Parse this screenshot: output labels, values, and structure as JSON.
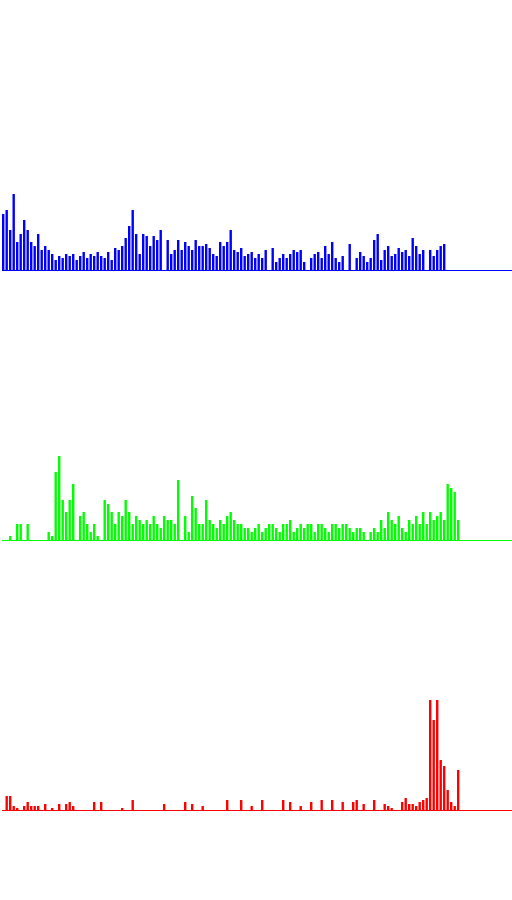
{
  "chart_data": [
    {
      "type": "bar",
      "series": [
        {
          "color": "#0000ff",
          "values": [
            28,
            30,
            20,
            38,
            14,
            18,
            25,
            20,
            14,
            12,
            18,
            10,
            12,
            10,
            8,
            5,
            7,
            6,
            8,
            7,
            8,
            5,
            7,
            9,
            6,
            8,
            7,
            9,
            7,
            6,
            9,
            5,
            11,
            10,
            12,
            16,
            22,
            30,
            18,
            8,
            18,
            17,
            12,
            17,
            15,
            20,
            0,
            15,
            8,
            10,
            15,
            10,
            14,
            12,
            10,
            15,
            12,
            12,
            13,
            11,
            8,
            7,
            14,
            12,
            14,
            20,
            10,
            9,
            11,
            7,
            8,
            9,
            6,
            8,
            6,
            10,
            0,
            11,
            4,
            6,
            8,
            6,
            8,
            10,
            9,
            10,
            4,
            0,
            6,
            8,
            9,
            6,
            12,
            8,
            14,
            6,
            4,
            7,
            0,
            13,
            0,
            6,
            9,
            7,
            4,
            6,
            15,
            18,
            5,
            10,
            12,
            7,
            8,
            11,
            9,
            10,
            7,
            16,
            12,
            8,
            10,
            0,
            10,
            7,
            10,
            12,
            13
          ]
        }
      ],
      "ylim": [
        0,
        60
      ]
    },
    {
      "type": "bar",
      "series": [
        {
          "color": "#00ff00",
          "values": [
            0,
            0,
            2,
            0,
            8,
            8,
            0,
            8,
            0,
            0,
            0,
            0,
            0,
            4,
            2,
            34,
            42,
            20,
            14,
            20,
            28,
            0,
            12,
            14,
            8,
            4,
            8,
            2,
            0,
            20,
            18,
            14,
            8,
            14,
            12,
            20,
            14,
            8,
            12,
            10,
            8,
            10,
            8,
            12,
            8,
            6,
            12,
            10,
            10,
            8,
            30,
            0,
            12,
            4,
            22,
            16,
            8,
            8,
            20,
            10,
            8,
            6,
            10,
            8,
            12,
            14,
            10,
            8,
            8,
            6,
            6,
            4,
            6,
            8,
            4,
            6,
            8,
            8,
            6,
            4,
            8,
            8,
            10,
            4,
            6,
            8,
            6,
            8,
            8,
            4,
            8,
            8,
            6,
            4,
            8,
            8,
            6,
            8,
            8,
            6,
            4,
            6,
            6,
            4,
            0,
            4,
            6,
            4,
            10,
            6,
            14,
            10,
            8,
            12,
            6,
            4,
            10,
            8,
            12,
            8,
            14,
            8,
            14,
            10,
            12,
            14,
            10,
            28,
            26,
            24,
            10
          ]
        }
      ],
      "ylim": [
        0,
        60
      ]
    },
    {
      "type": "bar",
      "series": [
        {
          "color": "#ff0000",
          "values": [
            0,
            14,
            14,
            4,
            2,
            0,
            4,
            8,
            4,
            4,
            4,
            0,
            6,
            0,
            2,
            0,
            6,
            0,
            6,
            8,
            4,
            0,
            0,
            0,
            0,
            0,
            8,
            0,
            8,
            0,
            0,
            0,
            0,
            0,
            2,
            0,
            0,
            10,
            0,
            0,
            0,
            0,
            0,
            0,
            0,
            0,
            6,
            0,
            0,
            0,
            0,
            0,
            8,
            0,
            6,
            0,
            0,
            4,
            0,
            0,
            0,
            0,
            0,
            0,
            10,
            0,
            0,
            0,
            10,
            0,
            0,
            4,
            0,
            0,
            10,
            0,
            0,
            0,
            0,
            0,
            10,
            0,
            8,
            0,
            0,
            4,
            0,
            0,
            8,
            0,
            0,
            10,
            0,
            0,
            10,
            0,
            0,
            8,
            0,
            0,
            8,
            10,
            0,
            6,
            0,
            0,
            10,
            0,
            0,
            6,
            4,
            2,
            0,
            0,
            8,
            12,
            6,
            6,
            4,
            8,
            10,
            12,
            110,
            90,
            110,
            50,
            44,
            20,
            8,
            4,
            40
          ]
        }
      ],
      "ylim": [
        0,
        120
      ]
    }
  ]
}
